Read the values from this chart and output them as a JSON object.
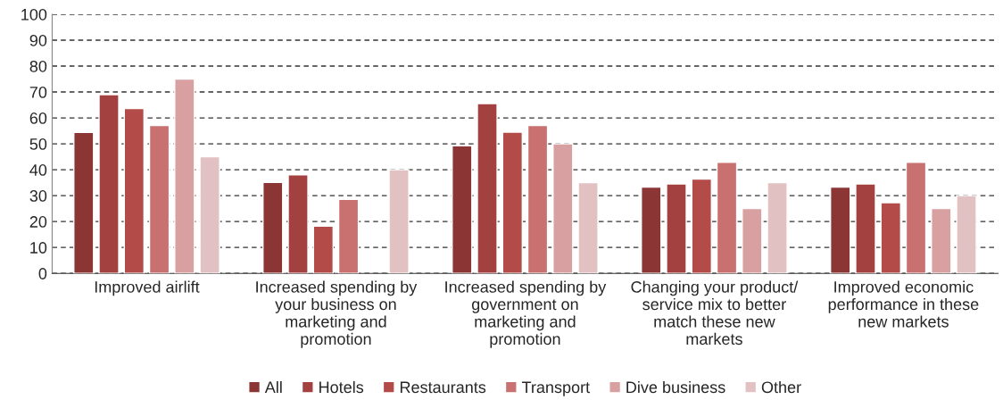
{
  "chart_data": {
    "type": "bar",
    "categories": [
      "Improved airlift",
      "Increased spending by\nyour business on\nmarketing and\npromotion",
      "Increased spending by\ngovernment on\nmarketing and\npromotion",
      "Changing your product/\nservice mix to better\nmatch these new\nmarkets",
      "Improved economic\nperformance in these\nnew markets"
    ],
    "series": [
      {
        "name": "All",
        "color": "#8b3535",
        "values": [
          54.4,
          35.1,
          49.2,
          33.3,
          33.3
        ]
      },
      {
        "name": "Hotels",
        "color": "#a34040",
        "values": [
          69,
          38,
          65.5,
          34.5,
          34.5
        ]
      },
      {
        "name": "Restaurants",
        "color": "#b34b48",
        "values": [
          63.6,
          18.2,
          54.5,
          36.4,
          27.3
        ]
      },
      {
        "name": "Transport",
        "color": "#c87170",
        "values": [
          57.1,
          28.6,
          57.1,
          42.9,
          42.9
        ]
      },
      {
        "name": "Dive business",
        "color": "#d8a0a0",
        "values": [
          75,
          null,
          50,
          25,
          25
        ]
      },
      {
        "name": "Other",
        "color": "#e2c1c2",
        "values": [
          45,
          40,
          35,
          35,
          30
        ]
      }
    ],
    "ylim": [
      0,
      100
    ],
    "yticks": [
      0,
      10,
      20,
      30,
      40,
      50,
      60,
      70,
      80,
      90,
      100
    ],
    "grid": "y",
    "legend": "bottom"
  }
}
